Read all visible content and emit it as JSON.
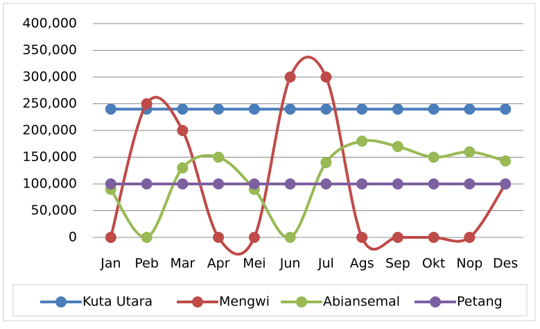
{
  "chart_data": {
    "type": "line",
    "categories": [
      "Jan",
      "Peb",
      "Mar",
      "Apr",
      "Mei",
      "Jun",
      "Jul",
      "Ags",
      "Sep",
      "Okt",
      "Nop",
      "Des"
    ],
    "series": [
      {
        "name": "Kuta Utara",
        "color": "#4a7ebb",
        "values": [
          240000,
          240000,
          240000,
          240000,
          240000,
          240000,
          240000,
          240000,
          240000,
          240000,
          240000,
          240000
        ]
      },
      {
        "name": "Mengwi",
        "color": "#be4b48",
        "values": [
          0,
          250000,
          200000,
          0,
          0,
          300000,
          300000,
          0,
          0,
          0,
          0,
          100000
        ]
      },
      {
        "name": "Abiansemal",
        "color": "#98b954",
        "values": [
          90000,
          0,
          130000,
          150000,
          90000,
          0,
          140000,
          180000,
          170000,
          150000,
          160000,
          143000
        ]
      },
      {
        "name": "Petang",
        "color": "#7d60a0",
        "values": [
          100000,
          100000,
          100000,
          100000,
          100000,
          100000,
          100000,
          100000,
          100000,
          100000,
          100000,
          100000
        ]
      }
    ],
    "ylim": [
      0,
      400000
    ],
    "yticks": [
      0,
      {
        "value": 50000,
        "label": "50,000"
      },
      {
        "value": 100000,
        "label": "100,000"
      },
      {
        "value": 150000,
        "label": "150,000"
      },
      {
        "value": 200000,
        "label": "200,000"
      },
      {
        "value": 250000,
        "label": "250,000"
      },
      {
        "value": 300000,
        "label": "300,000"
      },
      {
        "value": 350000,
        "label": "350,000"
      },
      {
        "value": 400000,
        "label": "400,000"
      }
    ],
    "grid": true,
    "legend": "bottom",
    "smooth": true
  }
}
